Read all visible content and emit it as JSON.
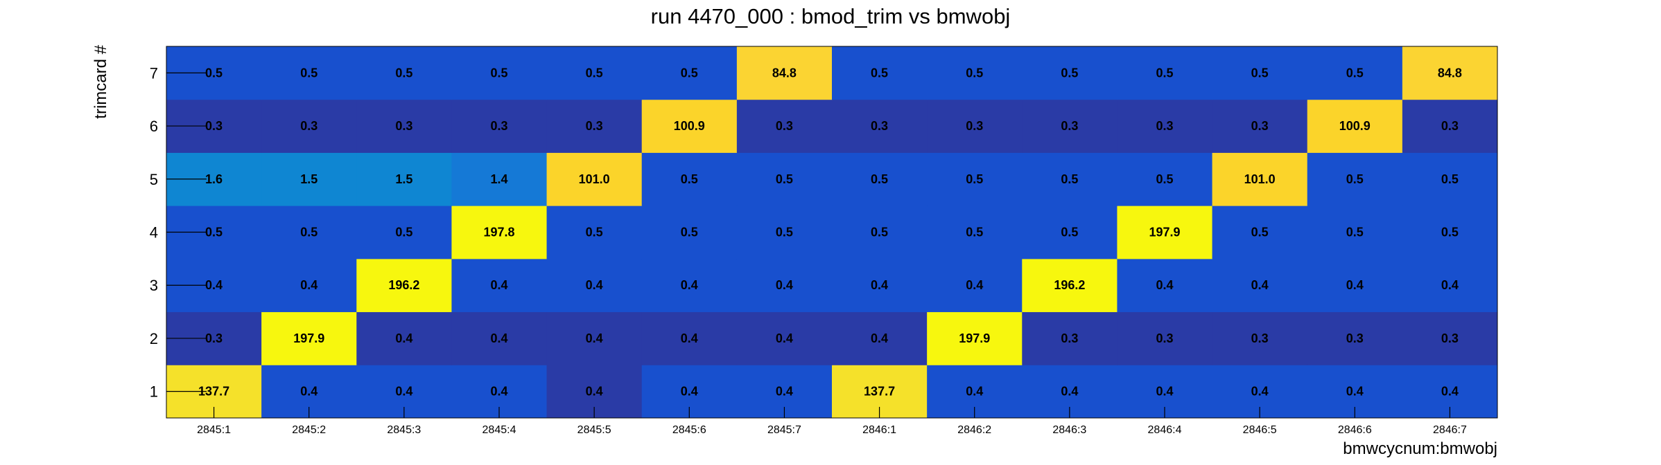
{
  "chart_data": {
    "type": "heatmap",
    "title": "run 4470_000 : bmod_trim vs bmwobj",
    "xlabel": "bmwcycnum:bmwobj",
    "ylabel": "trimcard #",
    "x_categories": [
      "2845:1",
      "2845:2",
      "2845:3",
      "2845:4",
      "2845:5",
      "2845:6",
      "2845:7",
      "2846:1",
      "2846:2",
      "2846:3",
      "2846:4",
      "2846:5",
      "2846:6",
      "2846:7"
    ],
    "y_categories": [
      "1",
      "2",
      "3",
      "4",
      "5",
      "6",
      "7"
    ],
    "values": [
      [
        137.7,
        0.4,
        0.4,
        0.4,
        0.4,
        0.4,
        0.4,
        137.7,
        0.4,
        0.4,
        0.4,
        0.4,
        0.4,
        0.4
      ],
      [
        0.3,
        197.9,
        0.4,
        0.4,
        0.4,
        0.4,
        0.4,
        0.4,
        197.9,
        0.3,
        0.3,
        0.3,
        0.3,
        0.3
      ],
      [
        0.4,
        0.4,
        196.2,
        0.4,
        0.4,
        0.4,
        0.4,
        0.4,
        0.4,
        196.2,
        0.4,
        0.4,
        0.4,
        0.4
      ],
      [
        0.5,
        0.5,
        0.5,
        197.8,
        0.5,
        0.5,
        0.5,
        0.5,
        0.5,
        0.5,
        197.9,
        0.5,
        0.5,
        0.5
      ],
      [
        1.6,
        1.5,
        1.5,
        1.4,
        101.0,
        0.5,
        0.5,
        0.5,
        0.5,
        0.5,
        0.5,
        101.0,
        0.5,
        0.5
      ],
      [
        0.3,
        0.3,
        0.3,
        0.3,
        0.3,
        100.9,
        0.3,
        0.3,
        0.3,
        0.3,
        0.3,
        0.3,
        100.9,
        0.3
      ],
      [
        0.5,
        0.5,
        0.5,
        0.5,
        0.5,
        0.5,
        84.8,
        0.5,
        0.5,
        0.5,
        0.5,
        0.5,
        0.5,
        84.8
      ]
    ],
    "cell_labels": [
      [
        "137.7",
        "0.4",
        "0.4",
        "0.4",
        "0.4",
        "0.4",
        "0.4",
        "137.7",
        "0.4",
        "0.4",
        "0.4",
        "0.4",
        "0.4",
        "0.4"
      ],
      [
        "0.3",
        "197.9",
        "0.4",
        "0.4",
        "0.4",
        "0.4",
        "0.4",
        "0.4",
        "197.9",
        "0.3",
        "0.3",
        "0.3",
        "0.3",
        "0.3"
      ],
      [
        "0.4",
        "0.4",
        "196.2",
        "0.4",
        "0.4",
        "0.4",
        "0.4",
        "0.4",
        "0.4",
        "196.2",
        "0.4",
        "0.4",
        "0.4",
        "0.4"
      ],
      [
        "0.5",
        "0.5",
        "0.5",
        "197.8",
        "0.5",
        "0.5",
        "0.5",
        "0.5",
        "0.5",
        "0.5",
        "197.9",
        "0.5",
        "0.5",
        "0.5"
      ],
      [
        "1.6",
        "1.5",
        "1.5",
        "1.4",
        "101.0",
        "0.5",
        "0.5",
        "0.5",
        "0.5",
        "0.5",
        "0.5",
        "101.0",
        "0.5",
        "0.5"
      ],
      [
        "0.3",
        "0.3",
        "0.3",
        "0.3",
        "0.3",
        "100.9",
        "0.3",
        "0.3",
        "0.3",
        "0.3",
        "0.3",
        "0.3",
        "100.9",
        "0.3"
      ],
      [
        "0.5",
        "0.5",
        "0.5",
        "0.5",
        "0.5",
        "0.5",
        "84.8",
        "0.5",
        "0.5",
        "0.5",
        "0.5",
        "0.5",
        "0.5",
        "84.8"
      ]
    ],
    "cell_colors": [
      [
        "#f5e12a",
        "#1850ce",
        "#1850ce",
        "#1850ce",
        "#2a3ba6",
        "#1850ce",
        "#1850ce",
        "#f5e12a",
        "#1850ce",
        "#1850ce",
        "#1850ce",
        "#1850ce",
        "#1850ce",
        "#1850ce"
      ],
      [
        "#2a3ba6",
        "#f7f70e",
        "#2a3ba6",
        "#2a3ba6",
        "#2a3ba6",
        "#2a3ba6",
        "#2a3ba6",
        "#2a3ba6",
        "#f7f70e",
        "#2a3ba6",
        "#2a3ba6",
        "#2a3ba6",
        "#2a3ba6",
        "#2a3ba6"
      ],
      [
        "#1850ce",
        "#1850ce",
        "#f7f70e",
        "#1850ce",
        "#1850ce",
        "#1850ce",
        "#1850ce",
        "#1850ce",
        "#1850ce",
        "#f7f70e",
        "#1850ce",
        "#1850ce",
        "#1850ce",
        "#1850ce"
      ],
      [
        "#1850ce",
        "#1850ce",
        "#1850ce",
        "#f7f70e",
        "#1850ce",
        "#1850ce",
        "#1850ce",
        "#1850ce",
        "#1850ce",
        "#1850ce",
        "#f7f70e",
        "#1850ce",
        "#1850ce",
        "#1850ce"
      ],
      [
        "#0f86d2",
        "#0f86d2",
        "#0f86d2",
        "#1579d6",
        "#fbd42a",
        "#1850ce",
        "#1850ce",
        "#1850ce",
        "#1850ce",
        "#1850ce",
        "#1850ce",
        "#fbd42a",
        "#1850ce",
        "#1850ce"
      ],
      [
        "#2a3ba6",
        "#2a3ba6",
        "#2a3ba6",
        "#2a3ba6",
        "#2a3ba6",
        "#fbd42a",
        "#2a3ba6",
        "#2a3ba6",
        "#2a3ba6",
        "#2a3ba6",
        "#2a3ba6",
        "#2a3ba6",
        "#fbd42a",
        "#2a3ba6"
      ],
      [
        "#1850ce",
        "#1850ce",
        "#1850ce",
        "#1850ce",
        "#1850ce",
        "#1850ce",
        "#fbd432",
        "#1850ce",
        "#1850ce",
        "#1850ce",
        "#1850ce",
        "#1850ce",
        "#1850ce",
        "#fbd432"
      ]
    ],
    "legend": "none",
    "grid": false
  }
}
